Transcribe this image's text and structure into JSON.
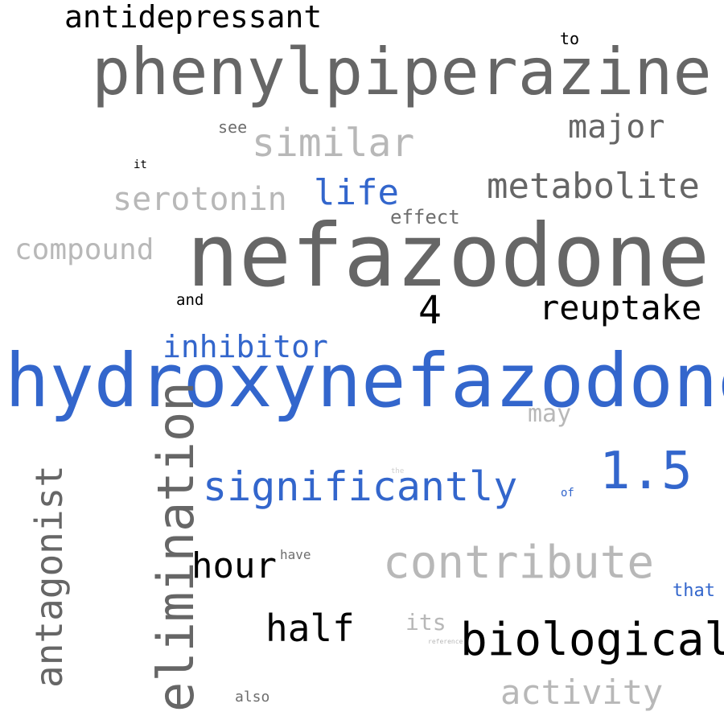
{
  "words": {
    "nefazodone": "nefazodone",
    "hydroxynefazodone": "hydroxynefazodone",
    "phenylpiperazine": "phenylpiperazine",
    "antidepressant": "antidepressant",
    "to": "to",
    "similar": "similar",
    "major": "major",
    "see": "see",
    "it": "it",
    "serotonin": "serotonin",
    "life": "life",
    "metabolite": "metabolite",
    "effect": "effect",
    "compound": "compound",
    "and": "and",
    "four": "4",
    "reuptake": "reuptake",
    "inhibitor": "inhibitor",
    "may": "may",
    "one_point_five": "1.5",
    "antagonist": "antagonist",
    "elimination": "elimination",
    "significantly": "significantly",
    "the": "the",
    "of": "of",
    "hour": "hour",
    "have": "have",
    "contribute": "contribute",
    "that": "that",
    "half": "half",
    "its": "its",
    "reference": "reference",
    "biological": "biological",
    "also": "also",
    "activity": "activity"
  },
  "colors": {
    "dark_gray": "#666666",
    "light_gray": "#b8b8b8",
    "blue": "#3366cc",
    "black": "#000000"
  }
}
